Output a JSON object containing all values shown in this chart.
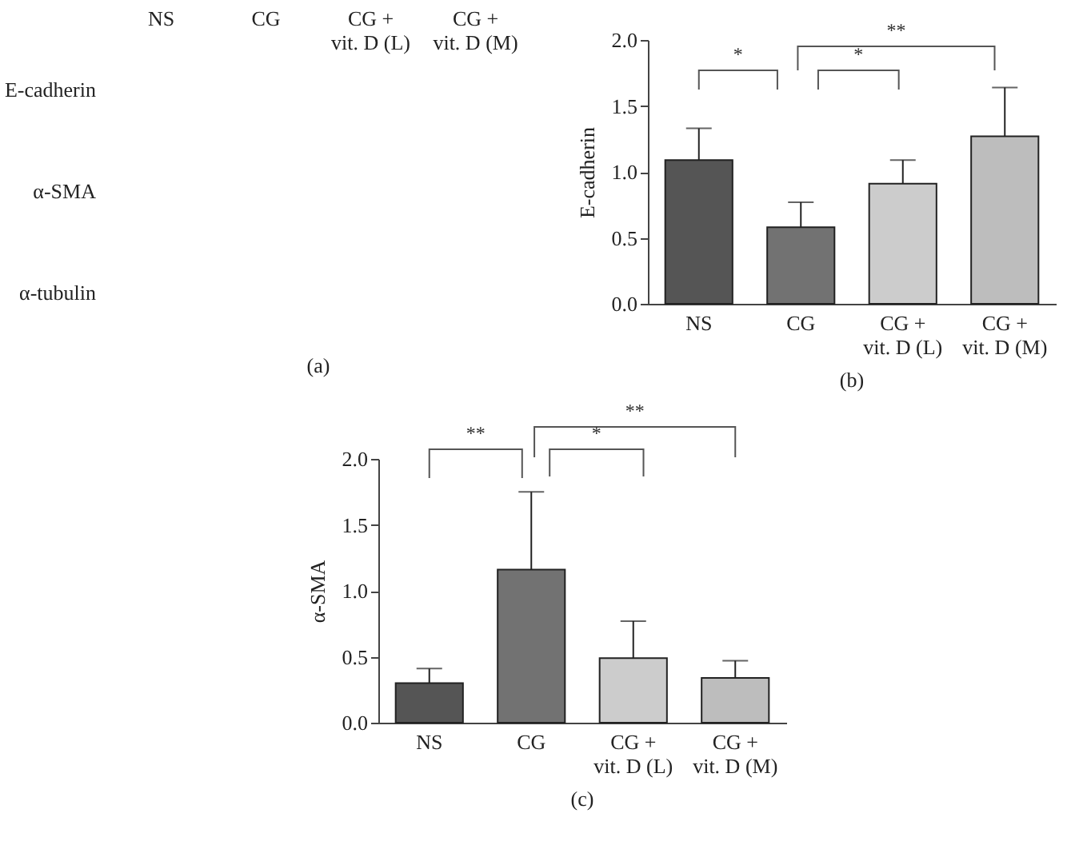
{
  "chart_data": [
    {
      "type": "other",
      "title": "(a)",
      "categories": [
        "NS",
        "CG",
        "CG +\nvit. D (L)",
        "CG +\nvit. D (M)"
      ],
      "y_categories": [
        "E-cadherin",
        "α-SMA",
        "α-tubulin"
      ]
    },
    {
      "type": "bar",
      "title": "(b)",
      "ylabel": "E-cadherin",
      "categories": [
        "NS",
        "CG",
        "CG +\nvit. D (L)",
        "CG +\nvit. D (M)"
      ],
      "values": [
        1.09,
        0.58,
        0.91,
        1.27
      ],
      "colors": [
        "#555555",
        "#727272",
        "#cccccc",
        "#bdbdbd"
      ],
      "errors": [
        [
          1.09,
          1.33
        ],
        [
          0.58,
          0.77
        ],
        [
          0.91,
          1.09
        ],
        [
          1.27,
          1.64
        ]
      ],
      "ylim": [
        0,
        2
      ],
      "yticks": [
        {
          "value": 0,
          "label": "0.0"
        },
        {
          "value": 0.5,
          "label": "0.5"
        },
        {
          "value": 1,
          "label": "1.0"
        },
        {
          "value": 1.5,
          "label": "1.5"
        },
        {
          "value": 2,
          "label": "2.0"
        }
      ],
      "annotations": [
        "*",
        "*",
        "**"
      ]
    },
    {
      "type": "bar",
      "title": "(c)",
      "ylabel": "α-SMA",
      "categories": [
        "NS",
        "CG",
        "CG +\nvit. D (L)",
        "CG +\nvit. D (M)"
      ],
      "values": [
        0.3,
        1.16,
        0.49,
        0.34
      ],
      "colors": [
        "#555555",
        "#727272",
        "#cccccc",
        "#bdbdbd"
      ],
      "errors": [
        [
          0.3,
          0.41
        ],
        [
          1.16,
          1.75
        ],
        [
          0.49,
          0.77
        ],
        [
          0.34,
          0.47
        ]
      ],
      "ylim": [
        0,
        2
      ],
      "yticks": [
        {
          "value": 0,
          "label": "0.0"
        },
        {
          "value": 0.5,
          "label": "0.5"
        },
        {
          "value": 1,
          "label": "1.0"
        },
        {
          "value": 1.5,
          "label": "1.5"
        },
        {
          "value": 2,
          "label": "2.0"
        }
      ],
      "annotations": [
        "**",
        "*",
        "**"
      ]
    }
  ]
}
